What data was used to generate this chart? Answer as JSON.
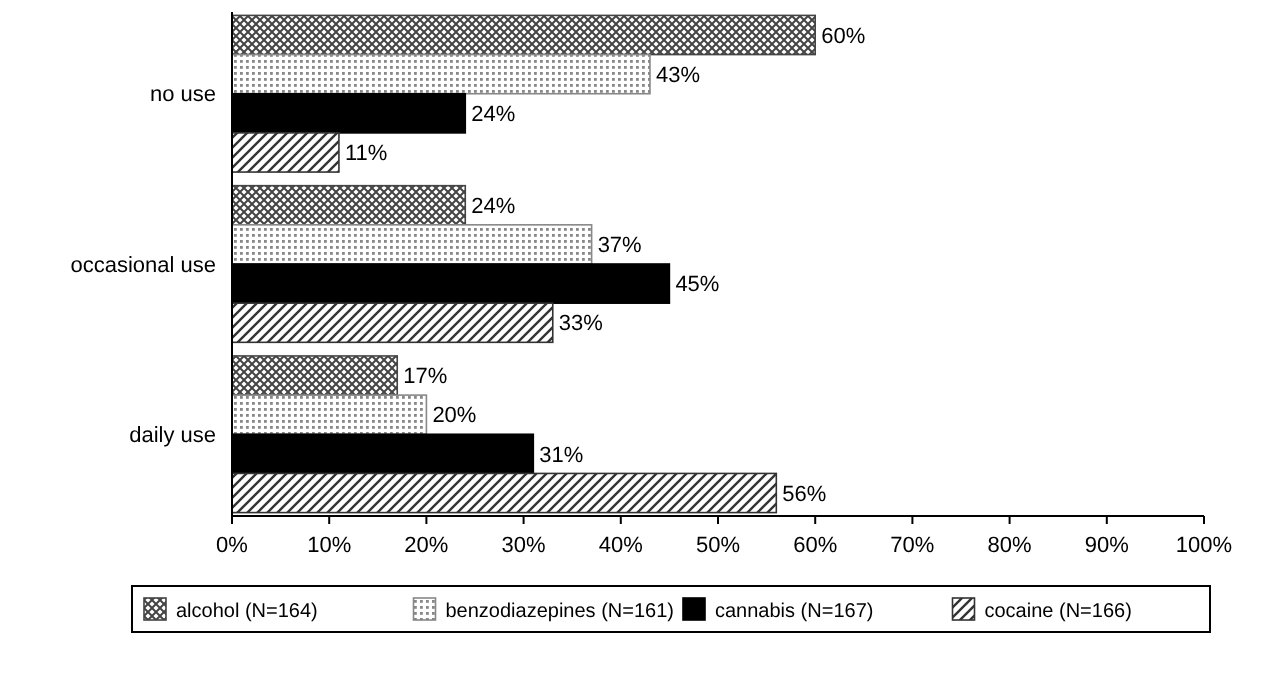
{
  "chart_data": {
    "type": "bar",
    "orientation": "horizontal",
    "categories": [
      "no use",
      "occasional use",
      "daily use"
    ],
    "series": [
      {
        "name": "alcohol (N=164)",
        "color": "#444444",
        "values": [
          60,
          24,
          17
        ],
        "value_labels": [
          "60%",
          "24%",
          "17%"
        ]
      },
      {
        "name": "benzodiazepines (N=161)",
        "color": "#888888",
        "values": [
          43,
          37,
          20
        ],
        "value_labels": [
          "43%",
          "37%",
          "20%"
        ]
      },
      {
        "name": "cannabis (N=167)",
        "color": "#000000",
        "values": [
          24,
          45,
          31
        ],
        "value_labels": [
          "24%",
          "45%",
          "31%"
        ]
      },
      {
        "name": "cocaine (N=166)",
        "color": "#333333",
        "values": [
          11,
          33,
          56
        ],
        "value_labels": [
          "11%",
          "33%",
          "56%"
        ]
      }
    ],
    "xlim": [
      0,
      100
    ],
    "xticks": [
      {
        "value": 0,
        "label": "0%"
      },
      {
        "value": 10,
        "label": "10%"
      },
      {
        "value": 20,
        "label": "20%"
      },
      {
        "value": 30,
        "label": "30%"
      },
      {
        "value": 40,
        "label": "40%"
      },
      {
        "value": 50,
        "label": "50%"
      },
      {
        "value": 60,
        "label": "60%"
      },
      {
        "value": 70,
        "label": "70%"
      },
      {
        "value": 80,
        "label": "80%"
      },
      {
        "value": 90,
        "label": "90%"
      },
      {
        "value": 100,
        "label": "100%"
      }
    ],
    "legend": "bottom",
    "grid": false
  }
}
